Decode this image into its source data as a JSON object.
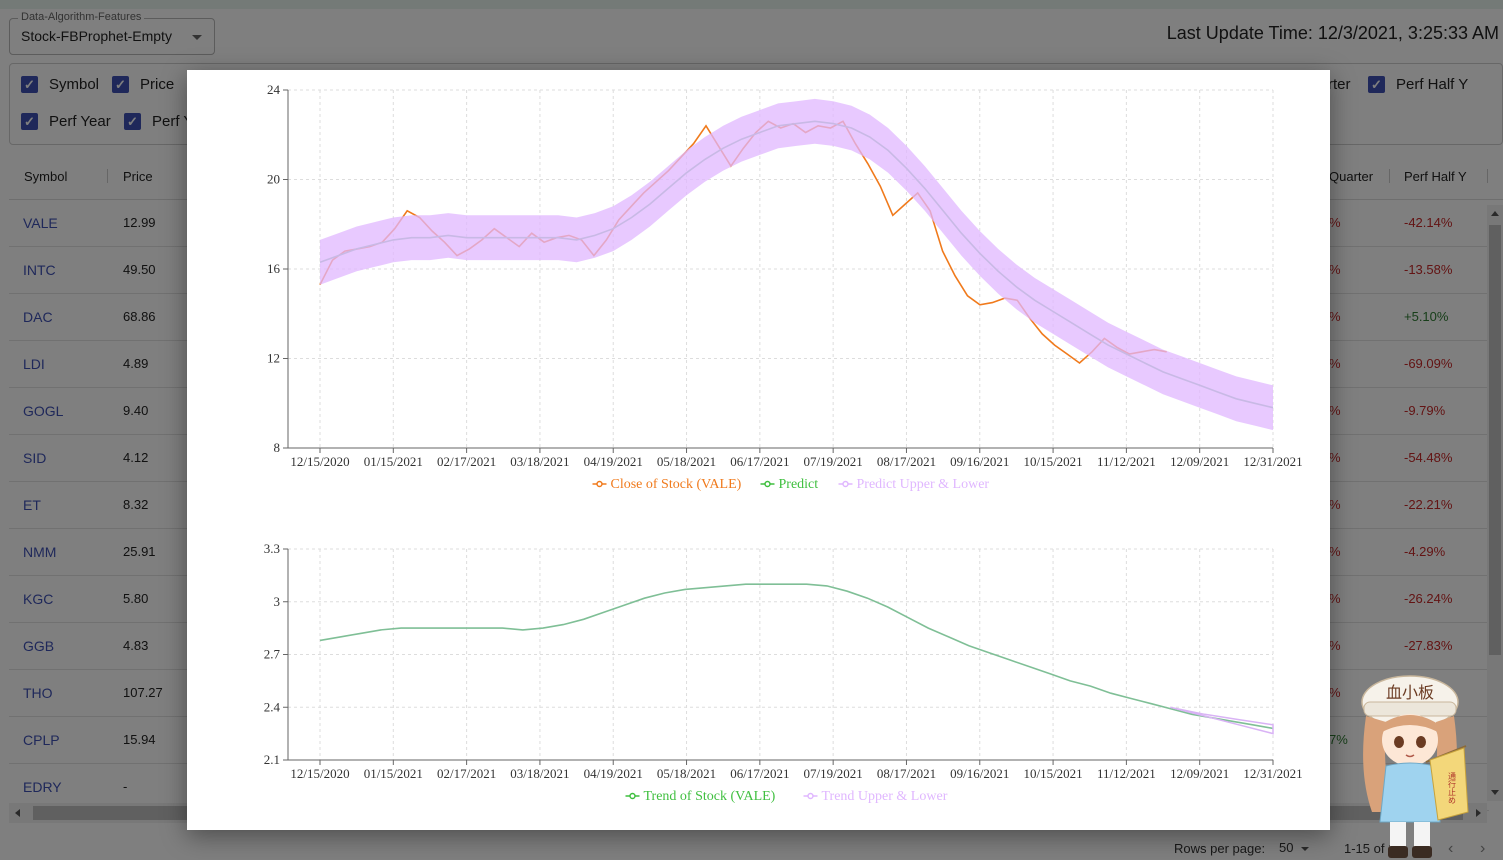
{
  "select": {
    "label": "Data-Algorithm-Features",
    "value": "Stock-FBProphet-Empty"
  },
  "update_time": "Last Update Time: 12/3/2021, 3:25:33 AM",
  "checkboxes": {
    "row1": [
      "Symbol",
      "Price"
    ],
    "row1_right": [
      "rter",
      "Perf Half Y"
    ],
    "row2": [
      "Perf Year",
      "Perf Y"
    ]
  },
  "table": {
    "headers": {
      "symbol": "Symbol",
      "price": "Price",
      "perf_quarter": "Quarter",
      "perf_half": "Perf Half Y"
    },
    "rows": [
      {
        "symbol": "VALE",
        "price": "12.99",
        "q": "%",
        "h": "-42.14%"
      },
      {
        "symbol": "INTC",
        "price": "49.50",
        "q": "%",
        "h": "-13.58%"
      },
      {
        "symbol": "DAC",
        "price": "68.86",
        "q": "%",
        "h": "+5.10%"
      },
      {
        "symbol": "LDI",
        "price": "4.89",
        "q": "%",
        "h": "-69.09%"
      },
      {
        "symbol": "GOGL",
        "price": "9.40",
        "q": "%",
        "h": "-9.79%"
      },
      {
        "symbol": "SID",
        "price": "4.12",
        "q": "%",
        "h": "-54.48%"
      },
      {
        "symbol": "ET",
        "price": "8.32",
        "q": "%",
        "h": "-22.21%"
      },
      {
        "symbol": "NMM",
        "price": "25.91",
        "q": "%",
        "h": "-4.29%"
      },
      {
        "symbol": "KGC",
        "price": "5.80",
        "q": "%",
        "h": "-26.24%"
      },
      {
        "symbol": "GGB",
        "price": "4.83",
        "q": "%",
        "h": "-27.83%"
      },
      {
        "symbol": "THO",
        "price": "107.27",
        "q": "%",
        "h": ""
      },
      {
        "symbol": "CPLP",
        "price": "15.94",
        "q": "7%",
        "h": "%"
      },
      {
        "symbol": "EDRY",
        "price": "-",
        "q": "",
        "h": ""
      }
    ]
  },
  "footer": {
    "rows_per_page_label": "Rows per page:",
    "rows_per_page": "50",
    "range": "1-15 of 15",
    "prev": "‹",
    "next": "›"
  },
  "mascot": {
    "sign_text": "血小板",
    "flag_text": "通行止め"
  },
  "colors": {
    "close": "#f07a1c",
    "predict": "#7fbf96",
    "band": "#e0b7ff",
    "trend_upper": "#d9b3f5",
    "accent": "#3f51b5",
    "negative": "#c62828",
    "positive": "#2e7d32"
  },
  "chart_data": [
    {
      "type": "line",
      "x_ticks": [
        "12/15/2020",
        "01/15/2021",
        "02/17/2021",
        "03/18/2021",
        "04/19/2021",
        "05/18/2021",
        "06/17/2021",
        "07/19/2021",
        "08/17/2021",
        "09/16/2021",
        "10/15/2021",
        "11/12/2021",
        "12/09/2021",
        "12/31/2021"
      ],
      "y_ticks": [
        8,
        12,
        16,
        20,
        24
      ],
      "ylim": [
        8,
        24
      ],
      "legend": [
        "Close of Stock (VALE)",
        "Predict",
        "Predict Upper & Lower"
      ],
      "legend_position": "bottom",
      "grid": true,
      "series": [
        {
          "name": "Close of Stock (VALE)",
          "x_end_index": 11.55,
          "values": [
            15.3,
            16.4,
            16.8,
            16.9,
            17.0,
            17.2,
            17.8,
            18.6,
            18.3,
            17.7,
            17.2,
            16.6,
            16.9,
            17.3,
            17.8,
            17.4,
            17.0,
            17.6,
            17.2,
            17.4,
            17.5,
            17.3,
            16.6,
            17.3,
            18.2,
            18.8,
            19.4,
            19.9,
            20.4,
            21.0,
            21.6,
            22.4,
            21.5,
            20.6,
            21.4,
            22.1,
            22.6,
            22.3,
            22.5,
            22.1,
            22.4,
            22.3,
            22.6,
            21.6,
            20.7,
            19.7,
            18.4,
            18.9,
            19.4,
            18.6,
            16.8,
            15.7,
            14.8,
            14.4,
            14.5,
            14.7,
            14.6,
            13.8,
            13.1,
            12.6,
            12.2,
            11.8,
            12.3,
            12.9,
            12.5,
            12.2,
            12.3,
            12.4,
            12.3
          ]
        },
        {
          "name": "Predict",
          "x_end_index": 13,
          "values": [
            16.3,
            16.6,
            16.9,
            17.1,
            17.3,
            17.4,
            17.4,
            17.5,
            17.4,
            17.4,
            17.4,
            17.4,
            17.4,
            17.4,
            17.3,
            17.5,
            17.8,
            18.3,
            18.9,
            19.6,
            20.3,
            20.9,
            21.4,
            21.8,
            22.1,
            22.4,
            22.5,
            22.6,
            22.5,
            22.3,
            21.9,
            21.3,
            20.5,
            19.6,
            18.6,
            17.6,
            16.7,
            15.9,
            15.2,
            14.6,
            14.1,
            13.6,
            13.1,
            12.6,
            12.2,
            11.8,
            11.4,
            11.1,
            10.8,
            10.5,
            10.2,
            10.0,
            9.8
          ]
        },
        {
          "name": "Predict Upper & Lower",
          "x_end_index": 13,
          "upper": [
            17.3,
            17.6,
            17.9,
            18.1,
            18.3,
            18.4,
            18.4,
            18.5,
            18.4,
            18.4,
            18.4,
            18.4,
            18.4,
            18.4,
            18.3,
            18.5,
            18.8,
            19.3,
            19.9,
            20.6,
            21.3,
            21.9,
            22.4,
            22.8,
            23.1,
            23.4,
            23.5,
            23.6,
            23.5,
            23.3,
            22.9,
            22.3,
            21.5,
            20.6,
            19.6,
            18.6,
            17.7,
            16.9,
            16.2,
            15.6,
            15.1,
            14.6,
            14.1,
            13.6,
            13.2,
            12.8,
            12.4,
            12.1,
            11.8,
            11.5,
            11.2,
            11.0,
            10.8
          ],
          "lower": [
            15.3,
            15.6,
            15.9,
            16.1,
            16.3,
            16.4,
            16.4,
            16.5,
            16.4,
            16.4,
            16.4,
            16.4,
            16.4,
            16.4,
            16.3,
            16.5,
            16.8,
            17.3,
            17.9,
            18.6,
            19.3,
            19.9,
            20.4,
            20.8,
            21.1,
            21.4,
            21.5,
            21.6,
            21.5,
            21.3,
            20.9,
            20.3,
            19.5,
            18.6,
            17.6,
            16.6,
            15.7,
            14.9,
            14.2,
            13.6,
            13.1,
            12.6,
            12.1,
            11.6,
            11.2,
            10.8,
            10.4,
            10.1,
            9.8,
            9.5,
            9.2,
            9.0,
            8.8
          ]
        }
      ]
    },
    {
      "type": "line",
      "x_ticks": [
        "12/15/2020",
        "01/15/2021",
        "02/17/2021",
        "03/18/2021",
        "04/19/2021",
        "05/18/2021",
        "06/17/2021",
        "07/19/2021",
        "08/17/2021",
        "09/16/2021",
        "10/15/2021",
        "11/12/2021",
        "12/09/2021",
        "12/31/2021"
      ],
      "y_ticks": [
        2.1,
        2.4,
        2.7,
        3,
        3.3
      ],
      "ylim": [
        2.1,
        3.3
      ],
      "legend": [
        "Trend of Stock (VALE)",
        "Trend Upper & Lower"
      ],
      "legend_position": "bottom",
      "grid": true,
      "series": [
        {
          "name": "Trend of Stock (VALE)",
          "x_end_index": 13,
          "values": [
            2.78,
            2.8,
            2.82,
            2.84,
            2.85,
            2.85,
            2.85,
            2.85,
            2.85,
            2.85,
            2.84,
            2.85,
            2.87,
            2.9,
            2.94,
            2.98,
            3.02,
            3.05,
            3.07,
            3.08,
            3.09,
            3.1,
            3.1,
            3.1,
            3.1,
            3.09,
            3.06,
            3.02,
            2.97,
            2.91,
            2.85,
            2.8,
            2.75,
            2.71,
            2.67,
            2.63,
            2.59,
            2.55,
            2.52,
            2.48,
            2.45,
            2.42,
            2.39,
            2.36,
            2.34,
            2.32,
            2.3,
            2.28
          ]
        },
        {
          "name": "Trend Upper & Lower",
          "x_end_index": 13,
          "start_index": 11.6,
          "upper": [
            2.4,
            2.36,
            2.33,
            2.3
          ],
          "lower": [
            2.4,
            2.35,
            2.3,
            2.25
          ]
        }
      ]
    }
  ]
}
